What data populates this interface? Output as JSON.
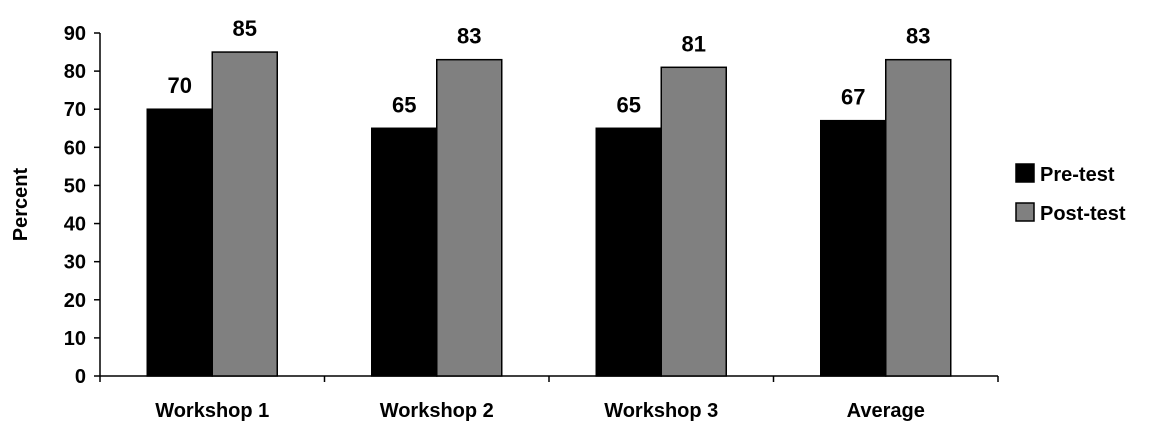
{
  "chart_data": {
    "type": "bar",
    "categories": [
      "Workshop 1",
      "Workshop 2",
      "Workshop 3",
      "Average"
    ],
    "series": [
      {
        "name": "Pre-test",
        "values": [
          70,
          65,
          65,
          67
        ],
        "color": "#000000"
      },
      {
        "name": "Post-test",
        "values": [
          85,
          83,
          81,
          83
        ],
        "color": "#808080"
      }
    ],
    "ylabel": "Percent",
    "ylim": [
      0,
      90
    ],
    "yticks": [
      "0",
      "10",
      "20",
      "30",
      "40",
      "50",
      "60",
      "70",
      "80",
      "90"
    ],
    "grid": false,
    "legend_position": "right"
  }
}
